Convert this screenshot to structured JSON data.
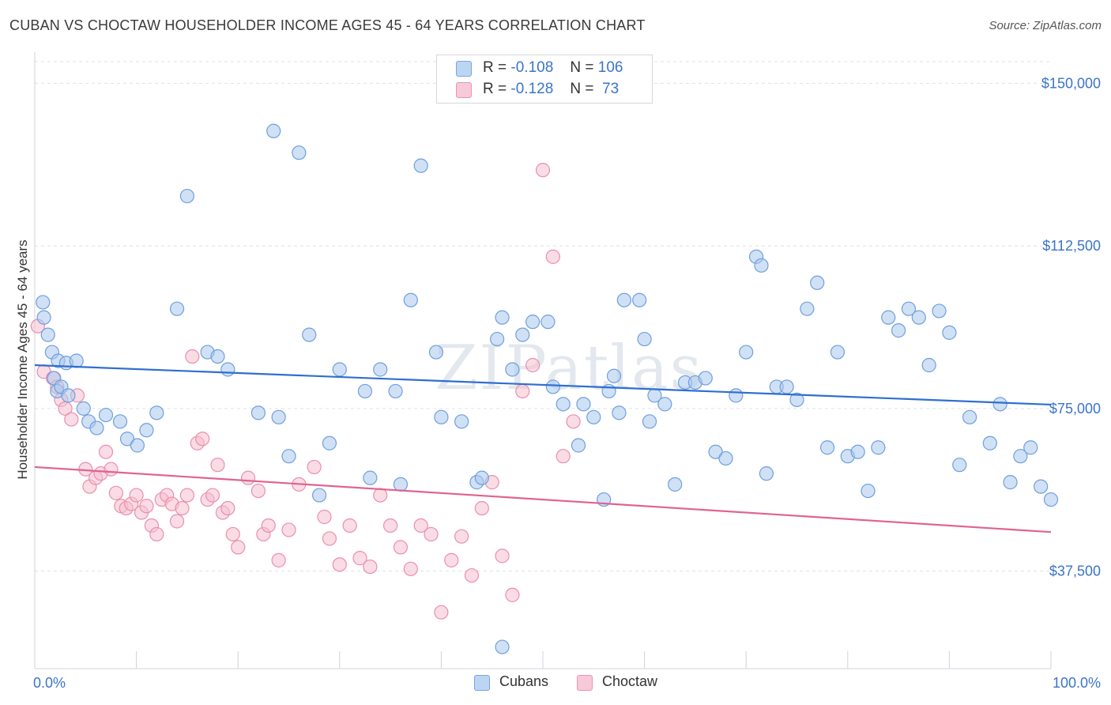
{
  "title": "CUBAN VS CHOCTAW HOUSEHOLDER INCOME AGES 45 - 64 YEARS CORRELATION CHART",
  "source": "Source: ZipAtlas.com",
  "legend": {
    "rows": [
      {
        "r_label": "R =",
        "r_value": "-0.108",
        "n_label": "N =",
        "n_value": "106"
      },
      {
        "r_label": "R =",
        "r_value": "-0.128",
        "n_label": "N =",
        "n_value": " 73"
      }
    ]
  },
  "bottom_legend": [
    "Cubans",
    "Choctaw"
  ],
  "watermark": "ZIPatlas",
  "colors": {
    "cuban_fill": "#a9c8ef",
    "cuban_stroke": "#6f9fdc",
    "cuban_line": "#2f6fd0",
    "choctaw_fill": "#f6bfd0",
    "choctaw_stroke": "#ea8fae",
    "choctaw_line": "#e0638f",
    "axis_text": "#3b74c9"
  },
  "chart_data": {
    "type": "scatter",
    "title": "CUBAN VS CHOCTAW HOUSEHOLDER INCOME AGES 45 - 64 YEARS CORRELATION CHART",
    "xlabel": "",
    "ylabel": "Householder Income Ages 45 - 64 years",
    "xlim": [
      0,
      100
    ],
    "ylim": [
      15000,
      155000
    ],
    "x_tick_labels": [
      "0.0%",
      "100.0%"
    ],
    "y_ticks": [
      37500,
      75000,
      112500,
      150000
    ],
    "y_tick_labels": [
      "$37,500",
      "$75,000",
      "$112,500",
      "$150,000"
    ],
    "series": [
      {
        "name": "Cubans",
        "trend": {
          "x": [
            0,
            100
          ],
          "y": [
            85000,
            75900
          ]
        },
        "points": [
          [
            0.8,
            99500
          ],
          [
            0.9,
            96000
          ],
          [
            1.3,
            92000
          ],
          [
            1.7,
            88000
          ],
          [
            2.3,
            86000
          ],
          [
            3.1,
            85500
          ],
          [
            4.1,
            86000
          ],
          [
            1.9,
            82000
          ],
          [
            2.2,
            79000
          ],
          [
            2.6,
            80000
          ],
          [
            3.3,
            78000
          ],
          [
            4.8,
            75000
          ],
          [
            5.3,
            72000
          ],
          [
            6.1,
            70500
          ],
          [
            7.0,
            73500
          ],
          [
            8.4,
            72000
          ],
          [
            9.1,
            68000
          ],
          [
            10.1,
            66500
          ],
          [
            11.0,
            70000
          ],
          [
            12.0,
            74000
          ],
          [
            14.0,
            98000
          ],
          [
            15.0,
            124000
          ],
          [
            17.0,
            88000
          ],
          [
            18.0,
            87000
          ],
          [
            19.0,
            84000
          ],
          [
            22.0,
            74000
          ],
          [
            23.5,
            139000
          ],
          [
            24.0,
            73000
          ],
          [
            25.0,
            64000
          ],
          [
            26.0,
            134000
          ],
          [
            27.0,
            92000
          ],
          [
            28.0,
            55000
          ],
          [
            29.0,
            67000
          ],
          [
            30.0,
            84000
          ],
          [
            32.5,
            79000
          ],
          [
            33.0,
            59000
          ],
          [
            34.0,
            84000
          ],
          [
            35.5,
            79000
          ],
          [
            36.0,
            57500
          ],
          [
            37.0,
            100000
          ],
          [
            38.0,
            131000
          ],
          [
            39.5,
            88000
          ],
          [
            40.0,
            73000
          ],
          [
            42.0,
            72000
          ],
          [
            43.5,
            58000
          ],
          [
            44.0,
            59000
          ],
          [
            45.5,
            91000
          ],
          [
            46.0,
            96000
          ],
          [
            47.0,
            84000
          ],
          [
            48.0,
            92000
          ],
          [
            49.0,
            95000
          ],
          [
            50.5,
            95000
          ],
          [
            51.0,
            80000
          ],
          [
            52.0,
            76000
          ],
          [
            53.5,
            66500
          ],
          [
            54.0,
            76000
          ],
          [
            55.0,
            73000
          ],
          [
            56.0,
            54000
          ],
          [
            56.5,
            79000
          ],
          [
            57.0,
            82500
          ],
          [
            57.5,
            74000
          ],
          [
            58.0,
            100000
          ],
          [
            59.5,
            100000
          ],
          [
            60.0,
            91000
          ],
          [
            60.5,
            72000
          ],
          [
            61.0,
            78000
          ],
          [
            62.0,
            76000
          ],
          [
            63.0,
            57500
          ],
          [
            64.0,
            81000
          ],
          [
            65.0,
            81000
          ],
          [
            66.0,
            82000
          ],
          [
            67.0,
            65000
          ],
          [
            68.0,
            63500
          ],
          [
            69.0,
            78000
          ],
          [
            70.0,
            88000
          ],
          [
            71.0,
            110000
          ],
          [
            71.5,
            108000
          ],
          [
            72.0,
            60000
          ],
          [
            73.0,
            80000
          ],
          [
            74.0,
            80000
          ],
          [
            75.0,
            77000
          ],
          [
            76.0,
            98000
          ],
          [
            77.0,
            104000
          ],
          [
            78.0,
            66000
          ],
          [
            79.0,
            88000
          ],
          [
            80.0,
            64000
          ],
          [
            81.0,
            65000
          ],
          [
            82.0,
            56000
          ],
          [
            83.0,
            66000
          ],
          [
            84.0,
            96000
          ],
          [
            85.0,
            93000
          ],
          [
            86.0,
            98000
          ],
          [
            87.0,
            96000
          ],
          [
            88.0,
            85000
          ],
          [
            89.0,
            97500
          ],
          [
            90.0,
            92500
          ],
          [
            91.0,
            62000
          ],
          [
            92.0,
            73000
          ],
          [
            94.0,
            67000
          ],
          [
            95.0,
            76000
          ],
          [
            96.0,
            58000
          ],
          [
            97.0,
            64000
          ],
          [
            98.0,
            66000
          ],
          [
            99.0,
            57000
          ],
          [
            100.0,
            54000
          ],
          [
            46.0,
            20000
          ]
        ]
      },
      {
        "name": "Choctaw",
        "trend": {
          "x": [
            0,
            100
          ],
          "y": [
            61500,
            46500
          ]
        },
        "points": [
          [
            0.3,
            94000
          ],
          [
            0.9,
            83500
          ],
          [
            1.8,
            82000
          ],
          [
            2.2,
            80000
          ],
          [
            2.6,
            77000
          ],
          [
            3.0,
            75000
          ],
          [
            3.6,
            72500
          ],
          [
            4.2,
            78000
          ],
          [
            5.0,
            61000
          ],
          [
            5.4,
            57000
          ],
          [
            6.0,
            59000
          ],
          [
            6.5,
            60000
          ],
          [
            7.0,
            65000
          ],
          [
            7.5,
            61000
          ],
          [
            8.0,
            55500
          ],
          [
            8.5,
            52500
          ],
          [
            9.0,
            52000
          ],
          [
            9.5,
            53000
          ],
          [
            10.0,
            55000
          ],
          [
            10.5,
            51000
          ],
          [
            11.0,
            52500
          ],
          [
            11.5,
            48000
          ],
          [
            12.0,
            46000
          ],
          [
            12.5,
            54000
          ],
          [
            13.0,
            55000
          ],
          [
            13.5,
            53000
          ],
          [
            14.0,
            49000
          ],
          [
            14.5,
            52000
          ],
          [
            15.0,
            55000
          ],
          [
            15.5,
            87000
          ],
          [
            16.0,
            67000
          ],
          [
            16.5,
            68000
          ],
          [
            17.0,
            54000
          ],
          [
            17.5,
            55000
          ],
          [
            18.0,
            62000
          ],
          [
            18.5,
            51000
          ],
          [
            19.0,
            52000
          ],
          [
            19.5,
            46000
          ],
          [
            20.0,
            43000
          ],
          [
            21.0,
            59000
          ],
          [
            22.0,
            56000
          ],
          [
            22.5,
            46000
          ],
          [
            23.0,
            48000
          ],
          [
            24.0,
            40000
          ],
          [
            25.0,
            47000
          ],
          [
            26.0,
            57500
          ],
          [
            27.5,
            61500
          ],
          [
            28.5,
            50000
          ],
          [
            29.0,
            45000
          ],
          [
            30.0,
            39000
          ],
          [
            31.0,
            48000
          ],
          [
            32.0,
            40500
          ],
          [
            33.0,
            38500
          ],
          [
            34.0,
            55000
          ],
          [
            35.0,
            48000
          ],
          [
            36.0,
            43000
          ],
          [
            37.0,
            38000
          ],
          [
            38.0,
            48000
          ],
          [
            39.0,
            46000
          ],
          [
            40.0,
            28000
          ],
          [
            41.0,
            40000
          ],
          [
            42.0,
            45500
          ],
          [
            43.0,
            36500
          ],
          [
            44.0,
            52000
          ],
          [
            45.0,
            58000
          ],
          [
            46.0,
            41000
          ],
          [
            47.0,
            32000
          ],
          [
            48.0,
            79000
          ],
          [
            49.0,
            85000
          ],
          [
            50.0,
            130000
          ],
          [
            51.0,
            110000
          ],
          [
            52.0,
            64000
          ],
          [
            53.0,
            72000
          ]
        ]
      }
    ]
  }
}
